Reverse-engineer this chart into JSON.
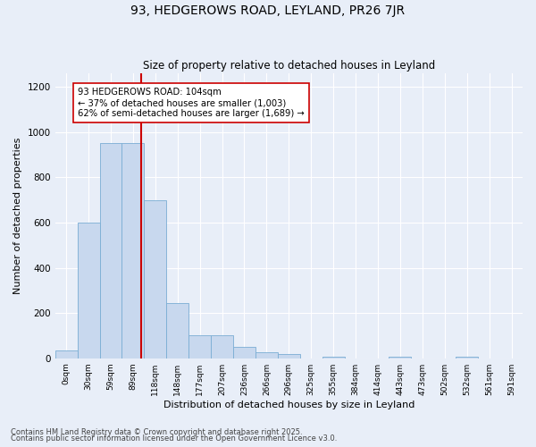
{
  "title": "93, HEDGEROWS ROAD, LEYLAND, PR26 7JR",
  "subtitle": "Size of property relative to detached houses in Leyland",
  "xlabel": "Distribution of detached houses by size in Leyland",
  "ylabel": "Number of detached properties",
  "bar_color": "#c8d8ee",
  "bar_edge_color": "#7aadd4",
  "background_color": "#e8eef8",
  "grid_color": "#ffffff",
  "categories": [
    "0sqm",
    "30sqm",
    "59sqm",
    "89sqm",
    "118sqm",
    "148sqm",
    "177sqm",
    "207sqm",
    "236sqm",
    "266sqm",
    "296sqm",
    "325sqm",
    "355sqm",
    "384sqm",
    "414sqm",
    "443sqm",
    "473sqm",
    "502sqm",
    "532sqm",
    "561sqm",
    "591sqm"
  ],
  "values": [
    35,
    600,
    950,
    950,
    700,
    245,
    100,
    100,
    50,
    25,
    18,
    0,
    8,
    0,
    0,
    8,
    0,
    0,
    8,
    0,
    0
  ],
  "ylim": [
    0,
    1260
  ],
  "yticks": [
    0,
    200,
    400,
    600,
    800,
    1000,
    1200
  ],
  "red_line_color": "#cc0000",
  "red_line_x": 3.35,
  "annotation_text": "93 HEDGEROWS ROAD: 104sqm\n← 37% of detached houses are smaller (1,003)\n62% of semi-detached houses are larger (1,689) →",
  "annotation_box_color": "#ffffff",
  "annotation_box_edge": "#cc0000",
  "footer_line1": "Contains HM Land Registry data © Crown copyright and database right 2025.",
  "footer_line2": "Contains public sector information licensed under the Open Government Licence v3.0."
}
